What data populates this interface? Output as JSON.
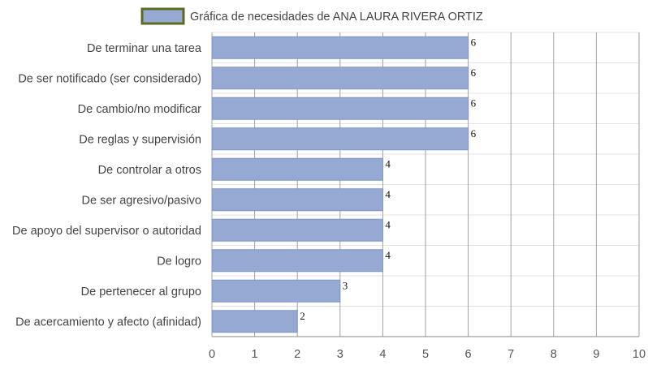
{
  "chart_data": {
    "type": "bar",
    "orientation": "horizontal",
    "title": "",
    "legend": {
      "position": "top",
      "entries": [
        "Gráfica de necesidades de ANA LAURA RIVERA ORTIZ"
      ]
    },
    "categories": [
      "De terminar una tarea",
      "De ser notificado (ser considerado)",
      "De cambio/no modificar",
      "De reglas y supervisión",
      "De controlar a otros",
      "De ser agresivo/pasivo",
      "De apoyo del supervisor o autoridad",
      "De logro",
      "De pertenecer al grupo",
      "De acercamiento y afecto (afinidad)"
    ],
    "series": [
      {
        "name": "Gráfica de necesidades de ANA LAURA RIVERA ORTIZ",
        "values": [
          6,
          6,
          6,
          6,
          4,
          4,
          4,
          4,
          3,
          2
        ]
      }
    ],
    "xlim": [
      0,
      10
    ],
    "x_ticks": [
      "0",
      "1",
      "2",
      "3",
      "4",
      "5",
      "6",
      "7",
      "8",
      "9",
      "10"
    ],
    "grid": true,
    "colors": {
      "bar_fill": "#95a9d3",
      "bar_stroke": "#8196c4",
      "legend_border": "#5c6b1f",
      "grid": "#a0a0a0",
      "hgrid": "#e3e3e3"
    }
  }
}
